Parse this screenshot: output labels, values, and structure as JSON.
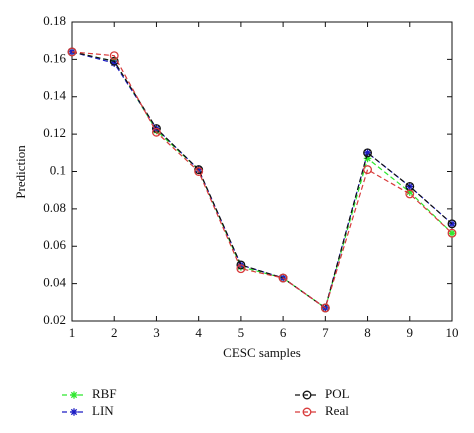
{
  "chart_data": {
    "type": "line",
    "x_label": "CESC samples",
    "y_label": "Prediction",
    "x": [
      1,
      2,
      3,
      4,
      5,
      6,
      7,
      8,
      9,
      10
    ],
    "series": [
      {
        "name": "RBF",
        "color": "#2ee82e",
        "marker": "star",
        "values": [
          0.164,
          0.159,
          0.122,
          0.101,
          0.049,
          0.043,
          0.027,
          0.107,
          0.089,
          0.067
        ]
      },
      {
        "name": "LIN",
        "color": "#1c1cc4",
        "marker": "star",
        "values": [
          0.164,
          0.158,
          0.123,
          0.101,
          0.05,
          0.043,
          0.027,
          0.11,
          0.092,
          0.072
        ]
      },
      {
        "name": "POL",
        "color": "#111111",
        "marker": "circle",
        "values": [
          0.164,
          0.159,
          0.123,
          0.101,
          0.05,
          0.043,
          0.027,
          0.11,
          0.092,
          0.072
        ]
      },
      {
        "name": "Real",
        "color": "#d83a3a",
        "marker": "circle",
        "values": [
          0.164,
          0.162,
          0.121,
          0.1,
          0.048,
          0.043,
          0.027,
          0.101,
          0.088,
          0.067
        ]
      }
    ],
    "xlim": [
      1,
      10
    ],
    "xticks": [
      1,
      2,
      3,
      4,
      5,
      6,
      7,
      8,
      9,
      10
    ],
    "ylim": [
      0.02,
      0.18
    ],
    "yticks": [
      0.02,
      0.04,
      0.06,
      0.08,
      0.1,
      0.12,
      0.14,
      0.16,
      0.18
    ],
    "grid": false,
    "legend": "bottom"
  }
}
